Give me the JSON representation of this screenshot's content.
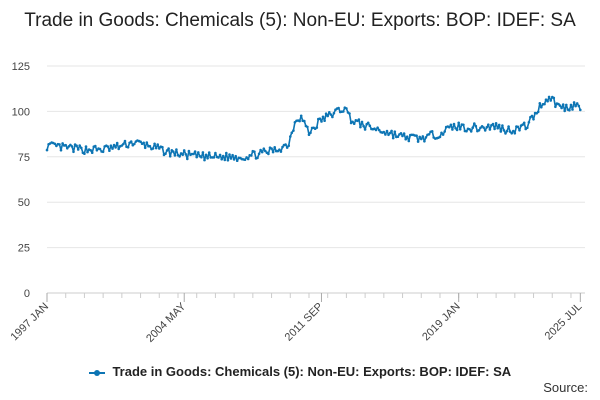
{
  "chart_data": {
    "type": "line",
    "title": "Trade in Goods: Chemicals (5): Non-EU: Exports: BOP: IDEF: SA",
    "x_tick_labels": [
      "1997 JAN",
      "2004 MAY",
      "2011 SEP",
      "2019 JAN",
      "2025 JUL"
    ],
    "x_tick_values": [
      1997.0,
      2004.333,
      2011.667,
      2019.0,
      2025.5
    ],
    "xlim": [
      1997.0,
      2025.75
    ],
    "y_tick_labels": [
      "0",
      "25",
      "50",
      "75",
      "100",
      "125"
    ],
    "ylim": [
      0,
      125
    ],
    "grid": true,
    "legend_position": "bottom",
    "series": [
      {
        "name": "Trade in Goods: Chemicals (5): Non-EU: Exports: BOP: IDEF: SA",
        "color": "#0d75b4",
        "anchors": [
          [
            1997.0,
            81
          ],
          [
            1998.0,
            80
          ],
          [
            1999.0,
            79
          ],
          [
            2000.0,
            79
          ],
          [
            2001.0,
            81
          ],
          [
            2001.6,
            83
          ],
          [
            2002.5,
            81
          ],
          [
            2003.3,
            78
          ],
          [
            2004.5,
            76
          ],
          [
            2005.5,
            75
          ],
          [
            2006.5,
            75
          ],
          [
            2007.5,
            75
          ],
          [
            2008.5,
            77
          ],
          [
            2009.3,
            79
          ],
          [
            2009.9,
            82
          ],
          [
            2010.3,
            96
          ],
          [
            2010.6,
            97
          ],
          [
            2011.0,
            88
          ],
          [
            2011.6,
            95
          ],
          [
            2012.3,
            99
          ],
          [
            2012.9,
            102
          ],
          [
            2013.3,
            95
          ],
          [
            2014.0,
            92
          ],
          [
            2015.0,
            89
          ],
          [
            2016.0,
            86
          ],
          [
            2017.0,
            85
          ],
          [
            2018.0,
            88
          ],
          [
            2018.8,
            92
          ],
          [
            2019.5,
            91
          ],
          [
            2020.3,
            91
          ],
          [
            2021.0,
            92
          ],
          [
            2021.5,
            90
          ],
          [
            2022.0,
            90
          ],
          [
            2022.6,
            92
          ],
          [
            2023.0,
            97
          ],
          [
            2023.4,
            104
          ],
          [
            2023.9,
            108
          ],
          [
            2024.3,
            103
          ],
          [
            2024.7,
            102
          ],
          [
            2025.0,
            103
          ],
          [
            2025.3,
            104
          ],
          [
            2025.5,
            100
          ]
        ],
        "noise": 2.3
      }
    ]
  },
  "legend_label": "Trade in Goods: Chemicals (5): Non-EU: Exports: BOP: IDEF: SA",
  "source_label": "Source:"
}
